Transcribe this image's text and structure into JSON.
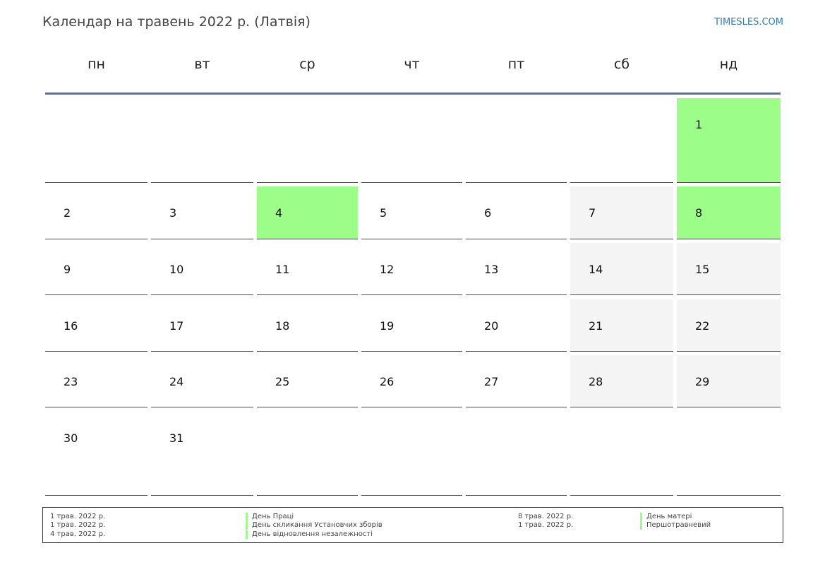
{
  "header": {
    "title": "Календар на травень 2022 р. (Латвія)",
    "brand": "TIMESLES.COM"
  },
  "weekdays": [
    "пн",
    "вт",
    "ср",
    "чт",
    "пт",
    "сб",
    "нд"
  ],
  "colors": {
    "holiday": "#9cfd88",
    "weekend": "#f4f4f4",
    "header_line": "#5872a0",
    "brand": "#2b7bbd"
  },
  "weeks": [
    [
      {
        "day": "",
        "type": "empty"
      },
      {
        "day": "",
        "type": "empty"
      },
      {
        "day": "",
        "type": "empty"
      },
      {
        "day": "",
        "type": "empty"
      },
      {
        "day": "",
        "type": "empty"
      },
      {
        "day": "",
        "type": "empty"
      },
      {
        "day": "1",
        "type": "holiday"
      }
    ],
    [
      {
        "day": "2",
        "type": "normal"
      },
      {
        "day": "3",
        "type": "normal"
      },
      {
        "day": "4",
        "type": "holiday"
      },
      {
        "day": "5",
        "type": "normal"
      },
      {
        "day": "6",
        "type": "normal"
      },
      {
        "day": "7",
        "type": "weekend"
      },
      {
        "day": "8",
        "type": "holiday"
      }
    ],
    [
      {
        "day": "9",
        "type": "normal"
      },
      {
        "day": "10",
        "type": "normal"
      },
      {
        "day": "11",
        "type": "normal"
      },
      {
        "day": "12",
        "type": "normal"
      },
      {
        "day": "13",
        "type": "normal"
      },
      {
        "day": "14",
        "type": "weekend"
      },
      {
        "day": "15",
        "type": "weekend"
      }
    ],
    [
      {
        "day": "16",
        "type": "normal"
      },
      {
        "day": "17",
        "type": "normal"
      },
      {
        "day": "18",
        "type": "normal"
      },
      {
        "day": "19",
        "type": "normal"
      },
      {
        "day": "20",
        "type": "normal"
      },
      {
        "day": "21",
        "type": "weekend"
      },
      {
        "day": "22",
        "type": "weekend"
      }
    ],
    [
      {
        "day": "23",
        "type": "normal"
      },
      {
        "day": "24",
        "type": "normal"
      },
      {
        "day": "25",
        "type": "normal"
      },
      {
        "day": "26",
        "type": "normal"
      },
      {
        "day": "27",
        "type": "normal"
      },
      {
        "day": "28",
        "type": "weekend"
      },
      {
        "day": "29",
        "type": "weekend"
      }
    ],
    [
      {
        "day": "30",
        "type": "normal"
      },
      {
        "day": "31",
        "type": "normal"
      },
      {
        "day": "",
        "type": "empty"
      },
      {
        "day": "",
        "type": "empty"
      },
      {
        "day": "",
        "type": "empty"
      },
      {
        "day": "",
        "type": "empty"
      },
      {
        "day": "",
        "type": "empty"
      }
    ]
  ],
  "legend": {
    "left": [
      {
        "date": "1 трав. 2022 р.",
        "name": "День Праці"
      },
      {
        "date": "1 трав. 2022 р.",
        "name": "День скликання Установчих зборів"
      },
      {
        "date": "4 трав. 2022 р.",
        "name": "День відновлення незалежності"
      }
    ],
    "right": [
      {
        "date": "8 трав. 2022 р.",
        "name": "День матері"
      },
      {
        "date": "1 трав. 2022 р.",
        "name": "Першотравневий"
      }
    ]
  }
}
